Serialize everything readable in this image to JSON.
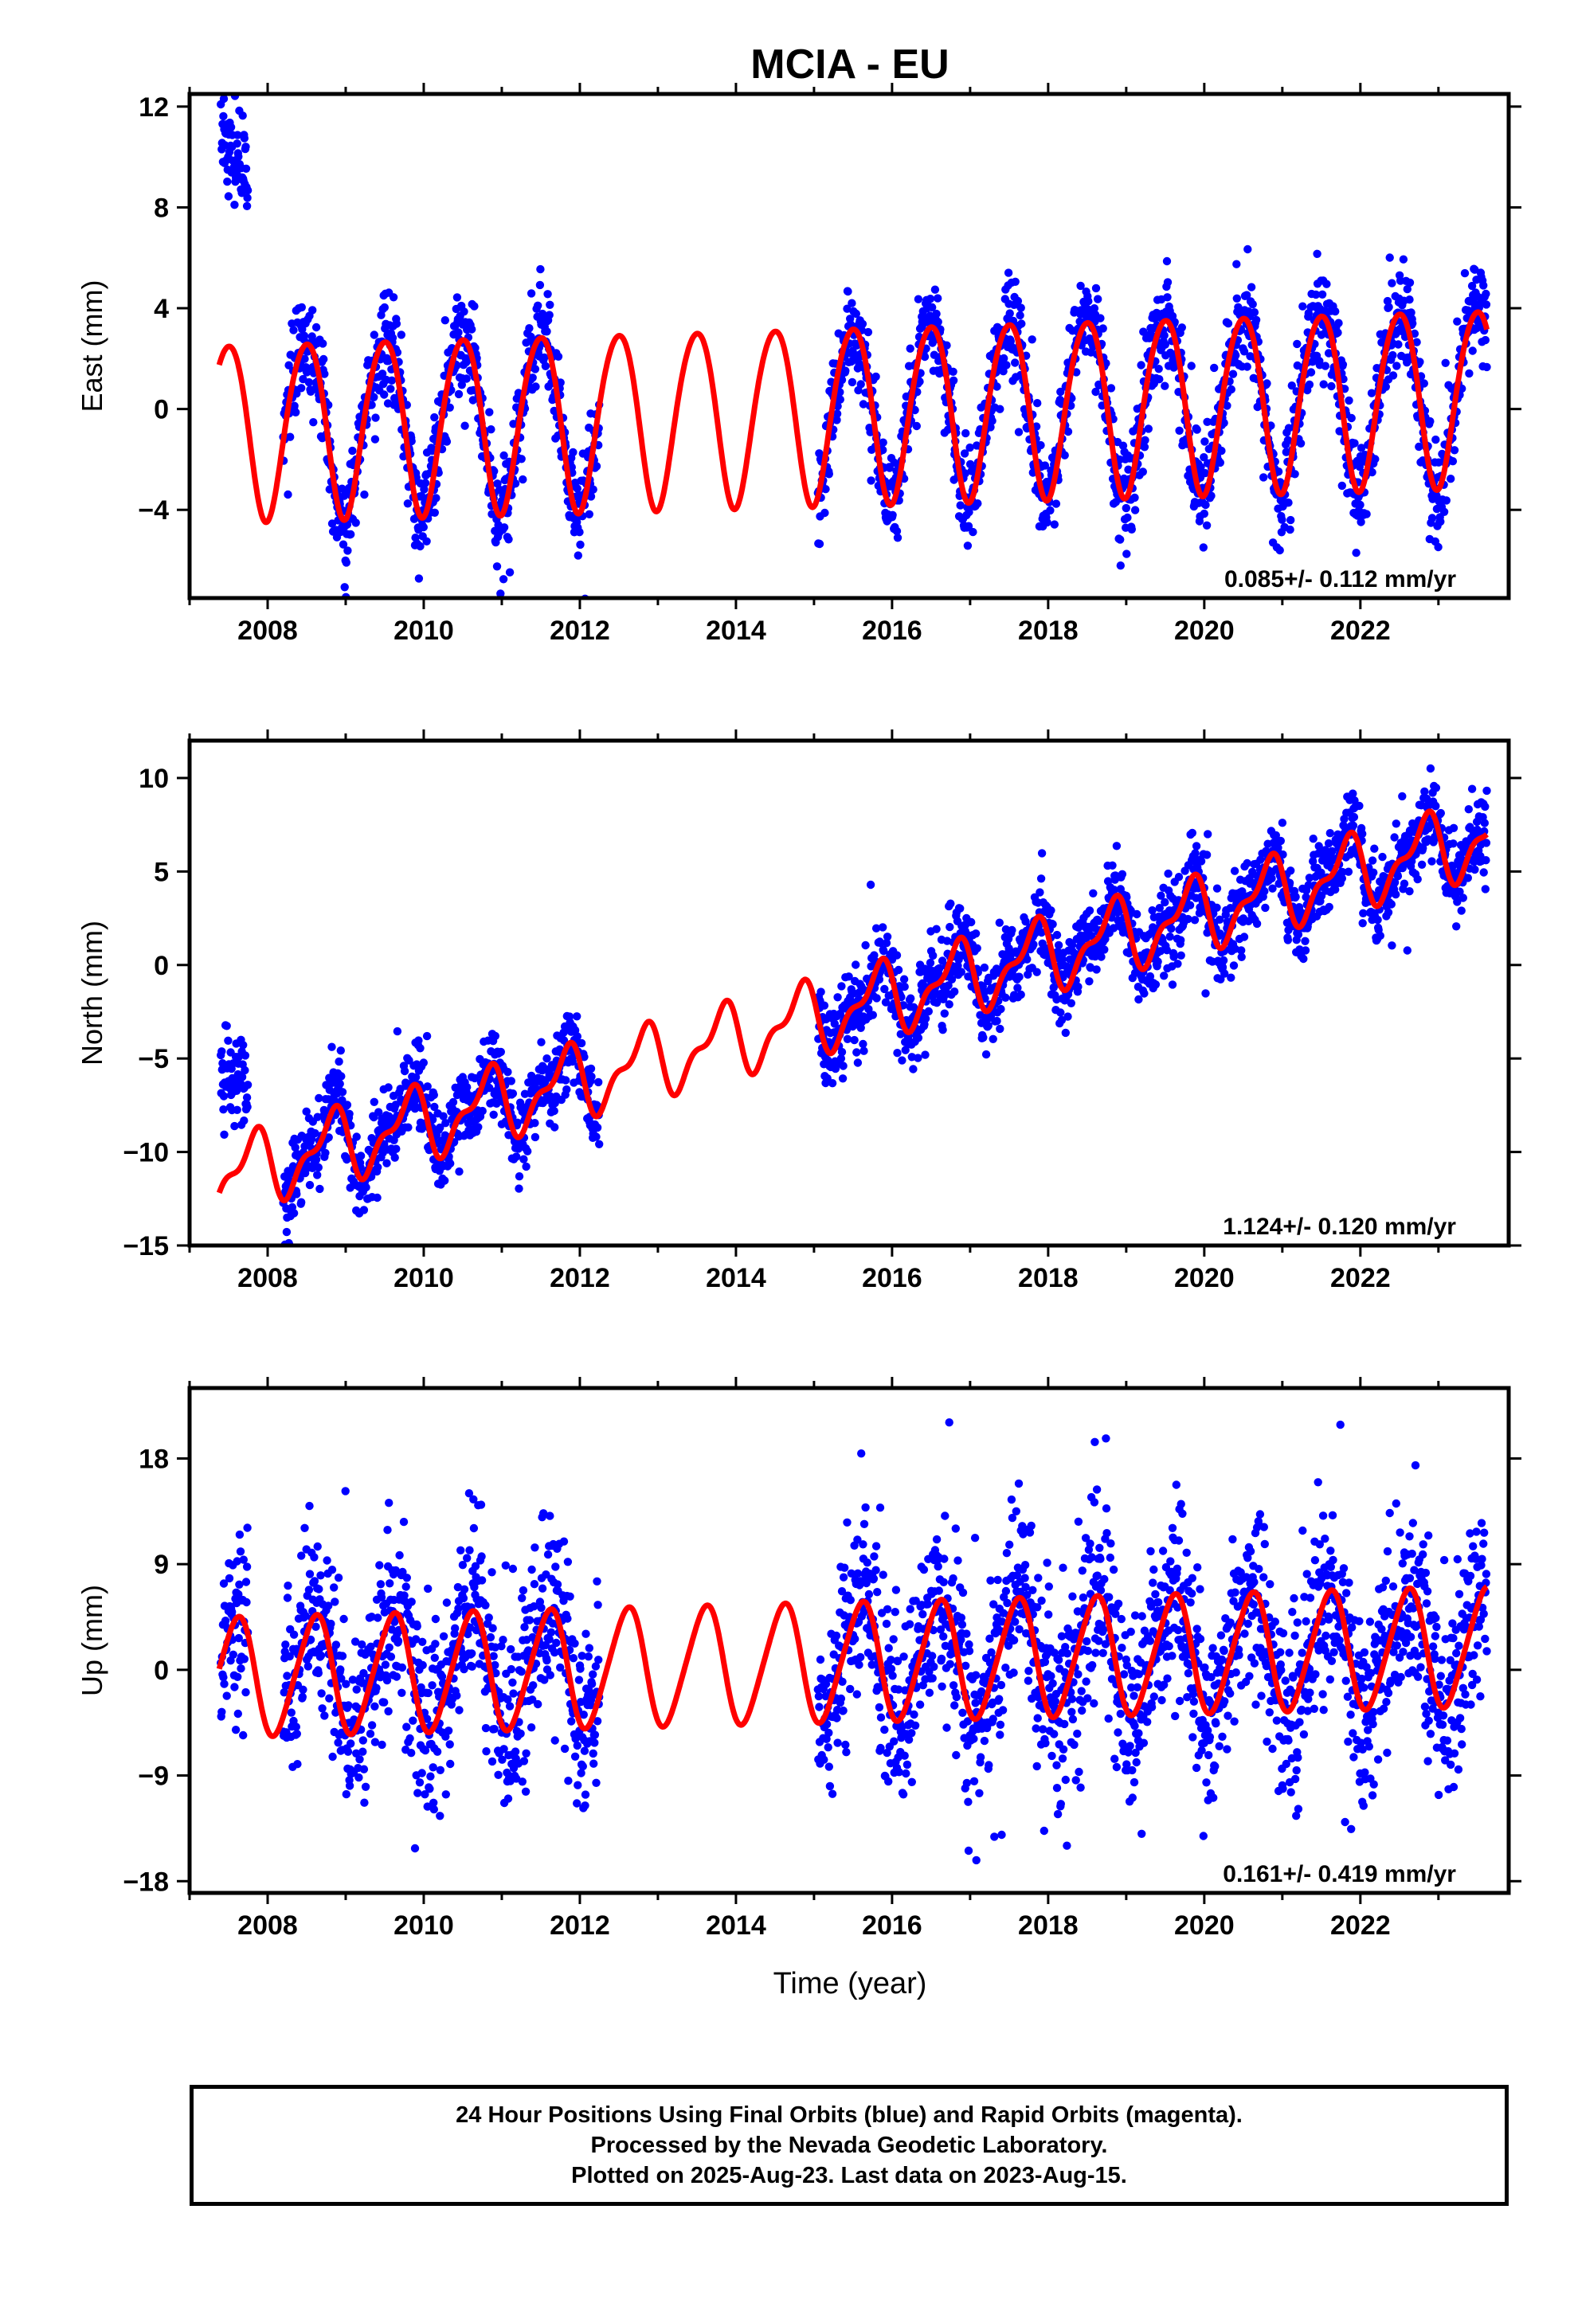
{
  "title": "MCIA - EU",
  "xlabel": "Time (year)",
  "footer": {
    "line1": "24 Hour Positions Using Final Orbits (blue) and Rapid Orbits (magenta).",
    "line2": "Processed by the Nevada Geodetic Laboratory.",
    "line3": "Plotted on 2025-Aug-23. Last data on 2023-Aug-15."
  },
  "colors": {
    "observations": "#0000ff",
    "model": "#ff0000"
  },
  "chart_data": [
    {
      "type": "scatter",
      "ylabel": "East (mm)",
      "xlim": [
        2007.0,
        2023.9
      ],
      "ylim": [
        -7.5,
        12.5
      ],
      "xticks": [
        2008,
        2010,
        2012,
        2014,
        2016,
        2018,
        2020,
        2022
      ],
      "xticklabels": [
        "2008",
        "2010",
        "2012",
        "2014",
        "2016",
        "2018",
        "2020",
        "2022"
      ],
      "yticks": [
        -4,
        0,
        4,
        8,
        12
      ],
      "yticklabels": [
        "−4",
        "0",
        "4",
        "8",
        "12"
      ],
      "annotation": "0.085+/- 0.112 mm/yr",
      "data_segments": [
        [
          2007.4,
          2007.75
        ],
        [
          2008.2,
          2012.25
        ],
        [
          2015.05,
          2023.62
        ]
      ],
      "early_offset": {
        "range": [
          2007.4,
          2007.75
        ],
        "values": [
          11.0,
          9.0
        ]
      },
      "model": {
        "offset_2007": -0.8,
        "trend_mm_per_yr": 0.085,
        "annual_amplitude": 3.5,
        "annual_phase": 0.24,
        "semiannual_amplitude": 0.3,
        "semiannual_phase": 0.08,
        "range": [
          2007.38,
          2023.62
        ]
      },
      "scatter_sd": 1.0
    },
    {
      "type": "scatter",
      "ylabel": "North (mm)",
      "xlim": [
        2007.0,
        2023.9
      ],
      "ylim": [
        -15.0,
        12.0
      ],
      "xticks": [
        2008,
        2010,
        2012,
        2014,
        2016,
        2018,
        2020,
        2022
      ],
      "xticklabels": [
        "2008",
        "2010",
        "2012",
        "2014",
        "2016",
        "2018",
        "2020",
        "2022"
      ],
      "yticks": [
        -15,
        -10,
        -5,
        0,
        5,
        10
      ],
      "yticklabels": [
        "−15",
        "−10",
        "−5",
        "0",
        "5",
        "10"
      ],
      "annotation": "1.124+/- 0.120 mm/yr",
      "data_segments": [
        [
          2007.4,
          2007.75
        ],
        [
          2008.2,
          2012.25
        ],
        [
          2015.05,
          2023.62
        ]
      ],
      "early_offset": {
        "range": [
          2007.4,
          2007.75
        ],
        "values": [
          -5.5,
          -6.5
        ]
      },
      "model": {
        "offset_2007": -11.8,
        "trend_mm_per_yr": 1.124,
        "annual_amplitude": 1.7,
        "annual_phase": 0.55,
        "semiannual_amplitude": 0.8,
        "semiannual_phase": 0.3,
        "range": [
          2007.38,
          2023.62
        ]
      },
      "scatter_sd": 1.1
    },
    {
      "type": "scatter",
      "ylabel": "Up (mm)",
      "xlim": [
        2007.0,
        2023.9
      ],
      "ylim": [
        -19.0,
        24.0
      ],
      "xticks": [
        2008,
        2010,
        2012,
        2014,
        2016,
        2018,
        2020,
        2022
      ],
      "xticklabels": [
        "2008",
        "2010",
        "2012",
        "2014",
        "2016",
        "2018",
        "2020",
        "2022"
      ],
      "yticks": [
        -18,
        -9,
        0,
        9,
        18
      ],
      "yticklabels": [
        "−18",
        "−9",
        "0",
        "9",
        "18"
      ],
      "annotation": "0.161+/- 0.419 mm/yr",
      "data_segments": [
        [
          2007.4,
          2007.75
        ],
        [
          2008.2,
          2012.25
        ],
        [
          2015.05,
          2023.62
        ]
      ],
      "model": {
        "offset_2007": -0.7,
        "trend_mm_per_yr": 0.161,
        "annual_amplitude": 5.0,
        "annual_phase": 0.35,
        "semiannual_amplitude": 0.6,
        "semiannual_phase": 0.1,
        "range": [
          2007.38,
          2023.62
        ]
      },
      "scatter_sd": 4.0
    }
  ]
}
